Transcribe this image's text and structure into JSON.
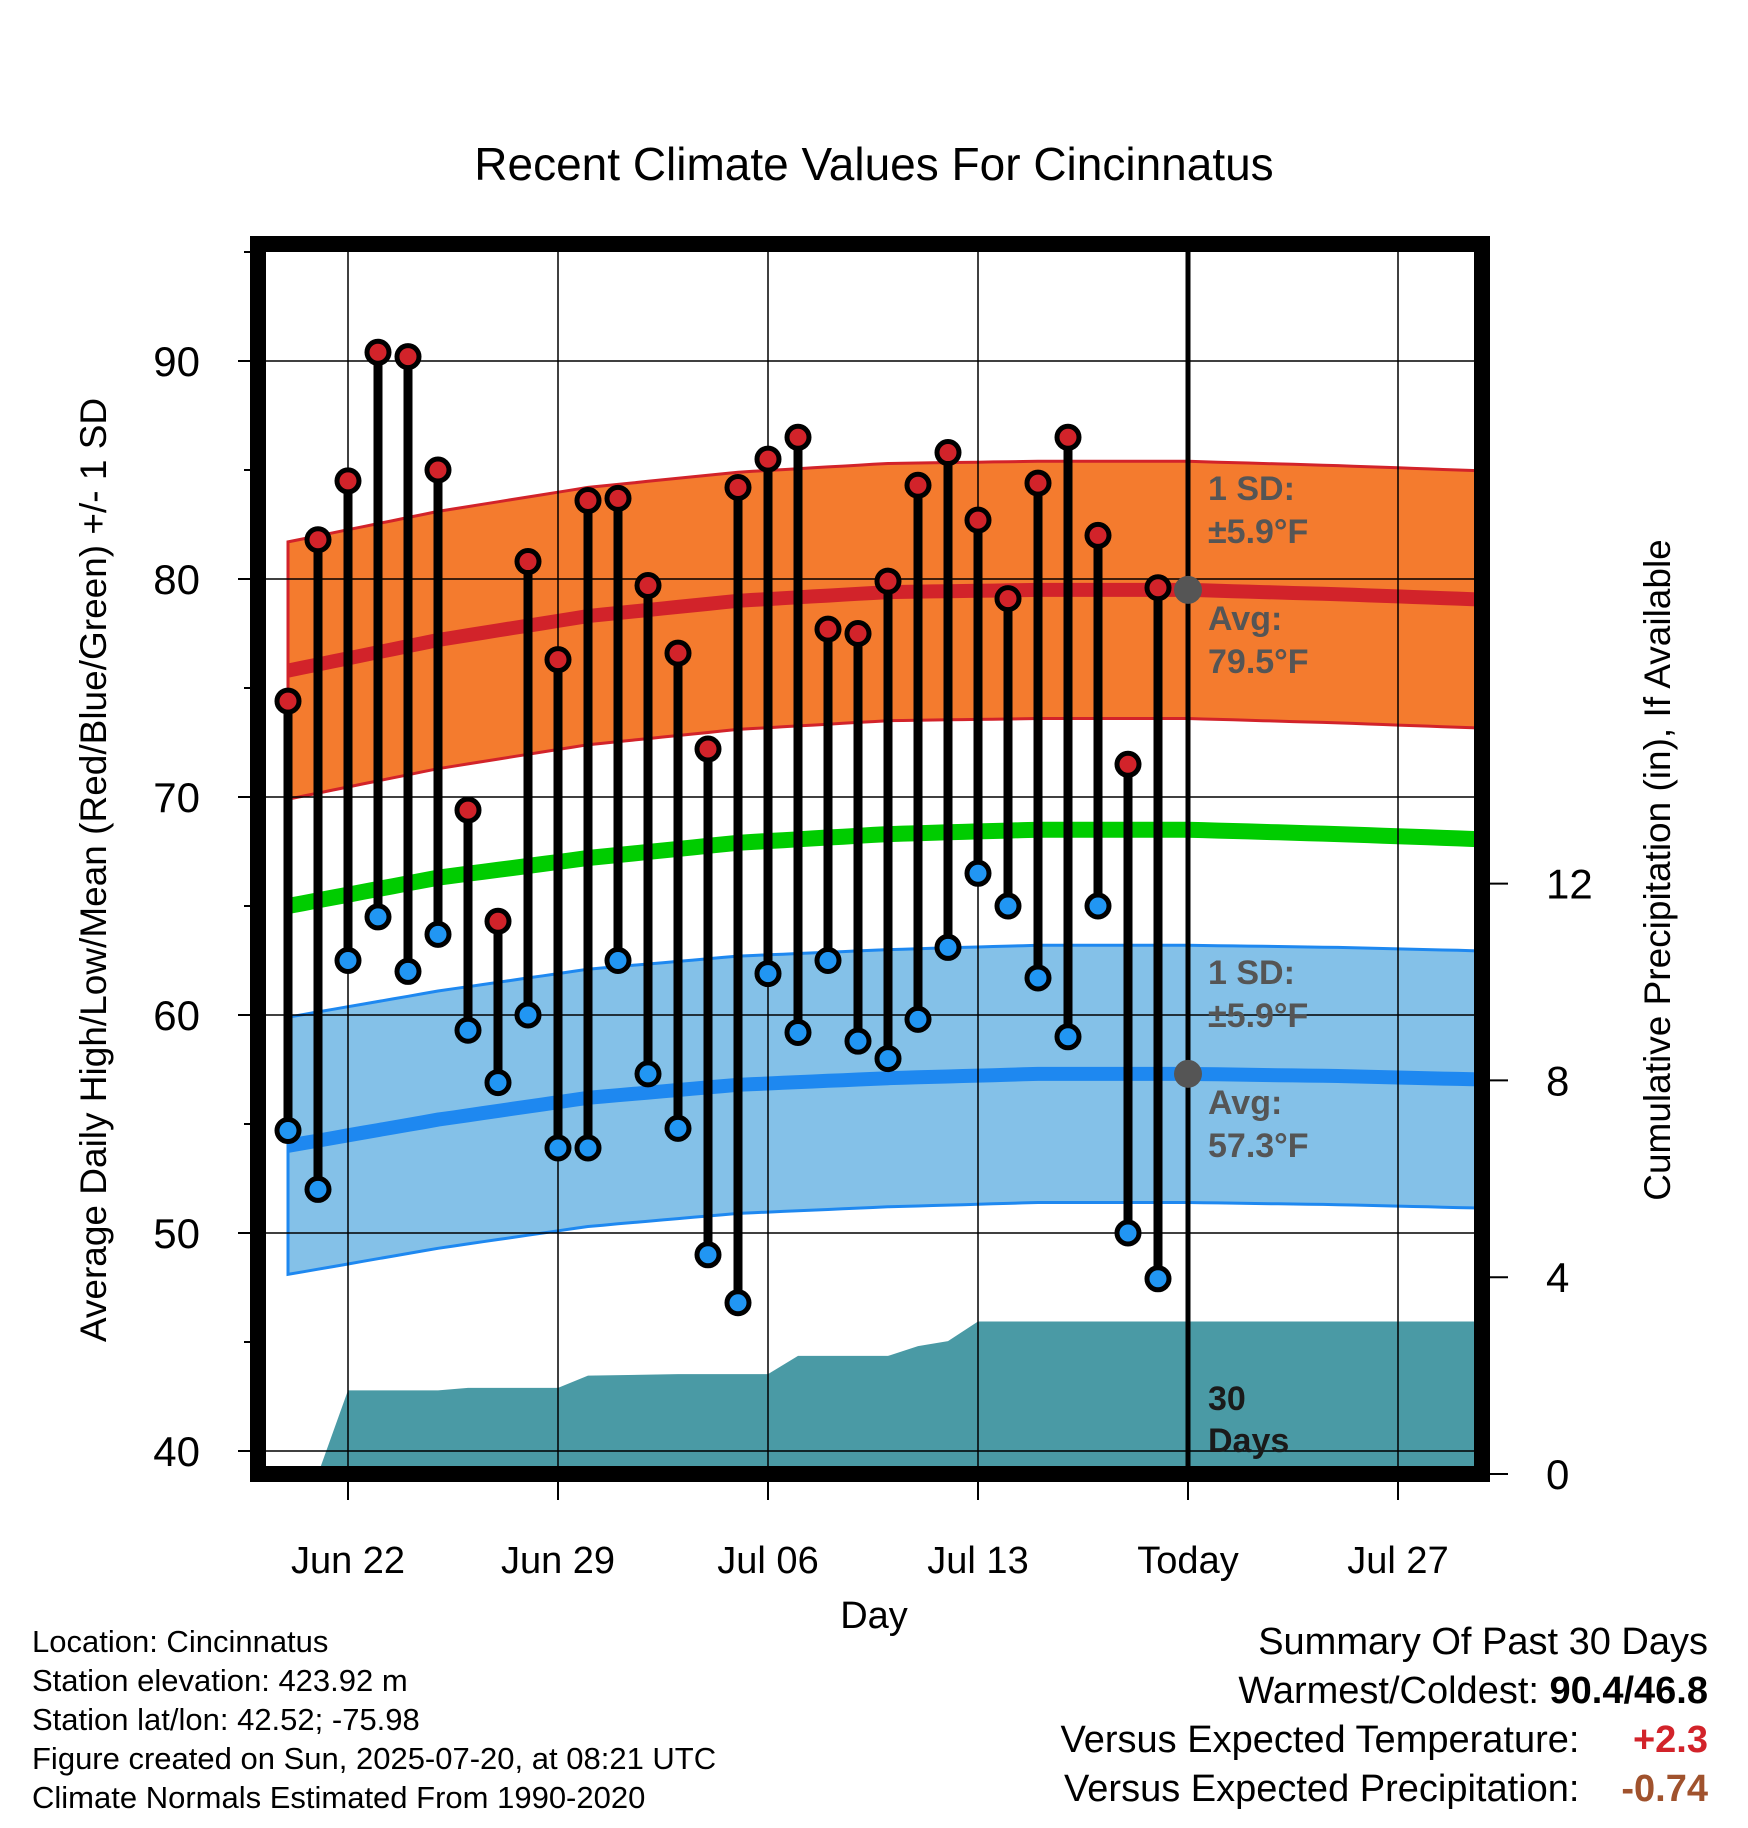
{
  "chart_data": {
    "type": "line",
    "title": "Recent Climate Values For Cincinnatus",
    "xlabel": "Day",
    "ylabel": "Average Daily High/Low/Mean (Red/Blue/Green) +/- 1 SD",
    "y2label": "Cumulative Precipitation (in), If Available",
    "ylim": [
      39,
      96
    ],
    "y2lim": [
      0,
      24
    ],
    "x_range_days": [
      -30,
      11
    ],
    "x_ticks": [
      {
        "day": -28,
        "label": "Jun 22"
      },
      {
        "day": -21,
        "label": "Jun 29"
      },
      {
        "day": -14,
        "label": "Jul 06"
      },
      {
        "day": -7,
        "label": "Jul 13"
      },
      {
        "day": 0,
        "label": "Today"
      },
      {
        "day": 7,
        "label": "Jul 27"
      }
    ],
    "y_ticks": [
      40,
      50,
      60,
      70,
      80,
      90
    ],
    "y2_ticks": [
      0,
      4,
      8,
      12
    ],
    "grid": true,
    "normals": {
      "day": [
        -30,
        -25,
        -20,
        -15,
        -10,
        -5,
        0,
        5,
        11
      ],
      "high_mean": [
        75.8,
        77.2,
        78.3,
        79.0,
        79.4,
        79.5,
        79.5,
        79.3,
        79.0
      ],
      "high_sd": 5.9,
      "low_mean": [
        54.0,
        55.2,
        56.2,
        56.8,
        57.1,
        57.3,
        57.3,
        57.2,
        57.0
      ],
      "low_sd": 5.9,
      "mean": [
        65.0,
        66.3,
        67.2,
        67.9,
        68.3,
        68.5,
        68.5,
        68.3,
        68.0
      ]
    },
    "daily": {
      "day": [
        -30,
        -29,
        -28,
        -27,
        -26,
        -25,
        -24,
        -23,
        -22,
        -21,
        -20,
        -19,
        -18,
        -17,
        -16,
        -15,
        -14,
        -13,
        -12,
        -11,
        -10,
        -9,
        -8,
        -7,
        -6,
        -5,
        -4,
        -3,
        -2,
        -1
      ],
      "high": [
        74.4,
        81.8,
        84.5,
        90.4,
        90.2,
        85.0,
        69.4,
        64.3,
        80.8,
        76.3,
        83.6,
        83.7,
        79.7,
        76.6,
        72.2,
        84.2,
        85.5,
        86.5,
        77.7,
        77.5,
        79.9,
        84.3,
        85.8,
        82.7,
        79.1,
        84.4,
        86.5,
        82.0,
        71.5,
        79.6
      ],
      "low": [
        54.7,
        52.0,
        62.5,
        64.5,
        62.0,
        63.7,
        59.3,
        56.9,
        60.0,
        53.9,
        53.9,
        62.5,
        57.3,
        54.8,
        49.0,
        46.8,
        61.9,
        59.2,
        62.5,
        58.8,
        58.0,
        59.8,
        63.1,
        66.5,
        65.0,
        61.7,
        59.0,
        65.0,
        50.0,
        47.9
      ]
    },
    "precip_cumulative": {
      "day": [
        -29,
        -28,
        -25,
        -24,
        -21,
        -20,
        -17,
        -14,
        -13,
        -10,
        -9,
        -8,
        -7,
        -5,
        11
      ],
      "inches": [
        0.0,
        1.7,
        1.7,
        1.75,
        1.75,
        2.0,
        2.03,
        2.03,
        2.4,
        2.4,
        2.6,
        2.7,
        3.1,
        3.1,
        3.1
      ]
    },
    "annotations": {
      "high_sd": "1 SD:",
      "high_sd_val": "±5.9°F",
      "high_avg": "Avg:",
      "high_avg_val": "79.5°F",
      "low_sd": "1 SD:",
      "low_sd_val": "±5.9°F",
      "low_avg": "Avg:",
      "low_avg_val": "57.3°F",
      "days_line1": "30",
      "days_line2": "Days"
    },
    "colors": {
      "high_band": "#f47b2e",
      "high_line": "#d2232a",
      "low_band": "#84c1e8",
      "low_line": "#1e88f0",
      "mean_line": "#00cc00",
      "precip": "#4a9aa5",
      "high_dot": "#d2232a",
      "low_dot": "#2196f3",
      "annot": "#555555"
    }
  },
  "info": {
    "location": "Location: Cincinnatus",
    "elevation": "Station elevation: 423.92 m",
    "latlon": "Station lat/lon: 42.52; -75.98",
    "created": "Figure created on Sun, 2025-07-20, at 08:21 UTC",
    "normals": "Climate Normals Estimated From 1990-2020"
  },
  "summary": {
    "title": "Summary Of Past 30 Days",
    "warm_label": "Warmest/Coldest:",
    "warm_value": "90.4/46.8",
    "temp_label": "Versus Expected Temperature:",
    "temp_value": "+2.3",
    "precip_label": "Versus Expected Precipitation:",
    "precip_value": "-0.74"
  }
}
